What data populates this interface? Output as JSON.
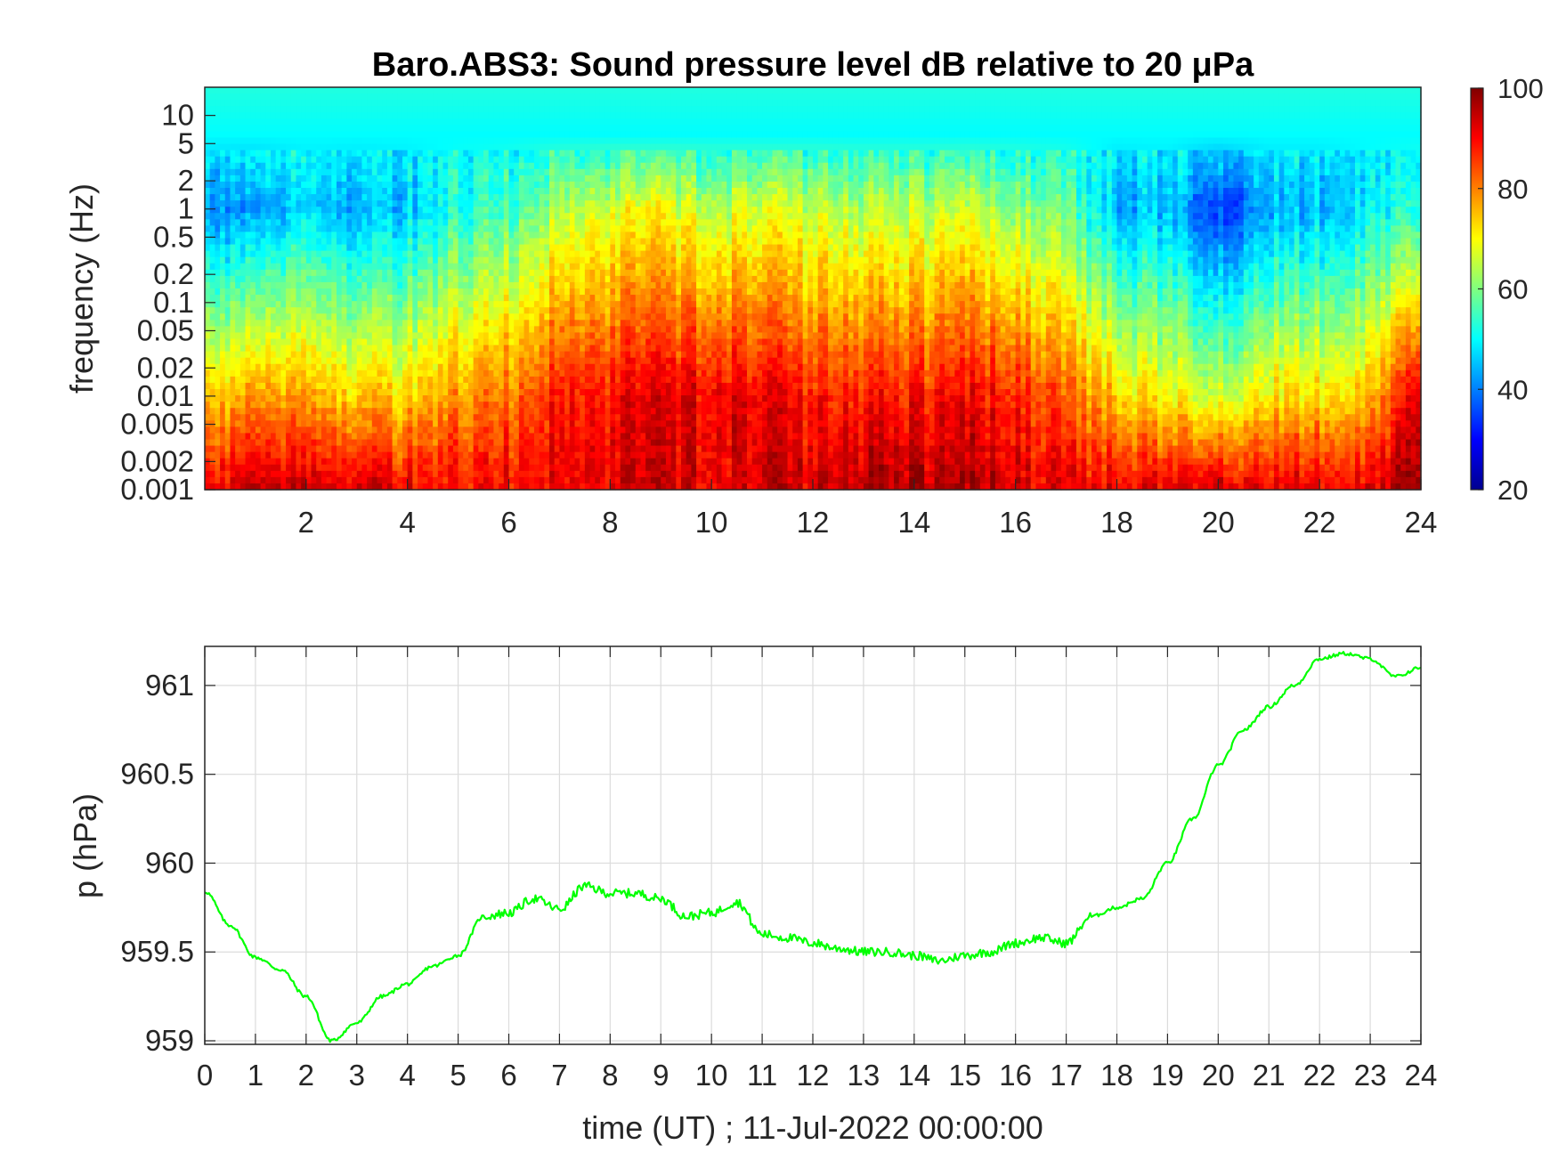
{
  "chart_data": [
    {
      "type": "heatmap",
      "title": "Baro.ABS3: Sound pressure level dB relative to 20 μPa",
      "ylabel": "frequency (Hz)",
      "xlabel": "",
      "xlim": [
        0,
        24
      ],
      "x_ticks": [
        "2",
        "4",
        "6",
        "8",
        "10",
        "12",
        "14",
        "16",
        "18",
        "20",
        "22",
        "24"
      ],
      "x_tick_values": [
        2,
        4,
        6,
        8,
        10,
        12,
        14,
        16,
        18,
        20,
        22,
        24
      ],
      "y_scale": "log",
      "ylim": [
        0.001,
        20
      ],
      "y_ticks": [
        "0.001",
        "0.002",
        "0.005",
        "0.01",
        "0.02",
        "0.05",
        "0.1",
        "0.2",
        "0.5",
        "1",
        "2",
        "5",
        "10"
      ],
      "y_tick_values": [
        0.001,
        0.002,
        0.005,
        0.01,
        0.02,
        0.05,
        0.1,
        0.2,
        0.5,
        1,
        2,
        5,
        10
      ],
      "colormap": "jet",
      "colorbar": {
        "range": [
          20,
          100
        ],
        "ticks": [
          "20",
          "40",
          "60",
          "80",
          "100"
        ],
        "tick_values": [
          20,
          40,
          60,
          80,
          100
        ]
      },
      "time_hours": [
        0,
        1,
        2,
        3,
        4,
        5,
        6,
        7,
        8,
        9,
        10,
        11,
        12,
        13,
        14,
        15,
        16,
        17,
        18,
        19,
        20,
        21,
        22,
        23,
        24
      ],
      "level_at_1Hz_dB": [
        42,
        40,
        46,
        44,
        46,
        52,
        56,
        64,
        68,
        68,
        66,
        66,
        66,
        64,
        64,
        66,
        62,
        58,
        44,
        46,
        34,
        44,
        44,
        50,
        55
      ],
      "level_at_0.01Hz_dB": [
        74,
        76,
        76,
        74,
        74,
        78,
        82,
        88,
        90,
        90,
        92,
        90,
        88,
        88,
        88,
        90,
        88,
        82,
        74,
        70,
        66,
        72,
        72,
        76,
        96
      ],
      "level_at_0.002Hz_dB": [
        86,
        88,
        88,
        88,
        86,
        86,
        88,
        90,
        92,
        92,
        92,
        92,
        92,
        94,
        94,
        94,
        92,
        88,
        86,
        86,
        86,
        86,
        86,
        88,
        100
      ]
    },
    {
      "type": "line",
      "xlabel": "time (UT) ; 11-Jul-2022 00:00:00",
      "ylabel": "p (hPa)",
      "xlim": [
        0,
        24
      ],
      "ylim": [
        958.98,
        961.22
      ],
      "x_ticks": [
        "0",
        "1",
        "2",
        "3",
        "4",
        "5",
        "6",
        "7",
        "8",
        "9",
        "10",
        "11",
        "12",
        "13",
        "14",
        "15",
        "16",
        "17",
        "18",
        "19",
        "20",
        "21",
        "22",
        "23",
        "24"
      ],
      "x_tick_values": [
        0,
        1,
        2,
        3,
        4,
        5,
        6,
        7,
        8,
        9,
        10,
        11,
        12,
        13,
        14,
        15,
        16,
        17,
        18,
        19,
        20,
        21,
        22,
        23,
        24
      ],
      "y_ticks": [
        "959",
        "959.5",
        "960",
        "960.5",
        "961"
      ],
      "y_tick_values": [
        959,
        959.5,
        960,
        960.5,
        961
      ],
      "grid": true,
      "color": "#00ff00",
      "x": [
        0,
        0.5,
        1,
        1.5,
        2,
        2.5,
        3,
        3.5,
        4,
        4.5,
        5,
        5.5,
        6,
        6.5,
        7,
        7.5,
        8,
        8.5,
        9,
        9.5,
        10,
        10.5,
        11,
        11.5,
        12,
        12.5,
        13,
        13.5,
        14,
        14.5,
        15,
        15.5,
        16,
        16.5,
        17,
        17.5,
        18,
        18.5,
        19,
        19.5,
        20,
        20.5,
        21,
        21.5,
        22,
        22.5,
        23,
        23.5,
        24
      ],
      "y": [
        959.84,
        959.65,
        959.47,
        959.4,
        959.25,
        959.0,
        959.1,
        959.25,
        959.32,
        959.42,
        959.48,
        959.7,
        959.72,
        959.8,
        959.74,
        959.87,
        959.83,
        959.83,
        959.8,
        959.7,
        959.72,
        959.78,
        959.6,
        959.58,
        959.55,
        959.52,
        959.5,
        959.5,
        959.48,
        959.45,
        959.48,
        959.5,
        959.55,
        959.58,
        959.55,
        959.7,
        959.75,
        959.8,
        960.0,
        960.25,
        960.55,
        960.75,
        960.88,
        961.0,
        961.15,
        961.18,
        961.15,
        961.05,
        961.1
      ]
    }
  ]
}
